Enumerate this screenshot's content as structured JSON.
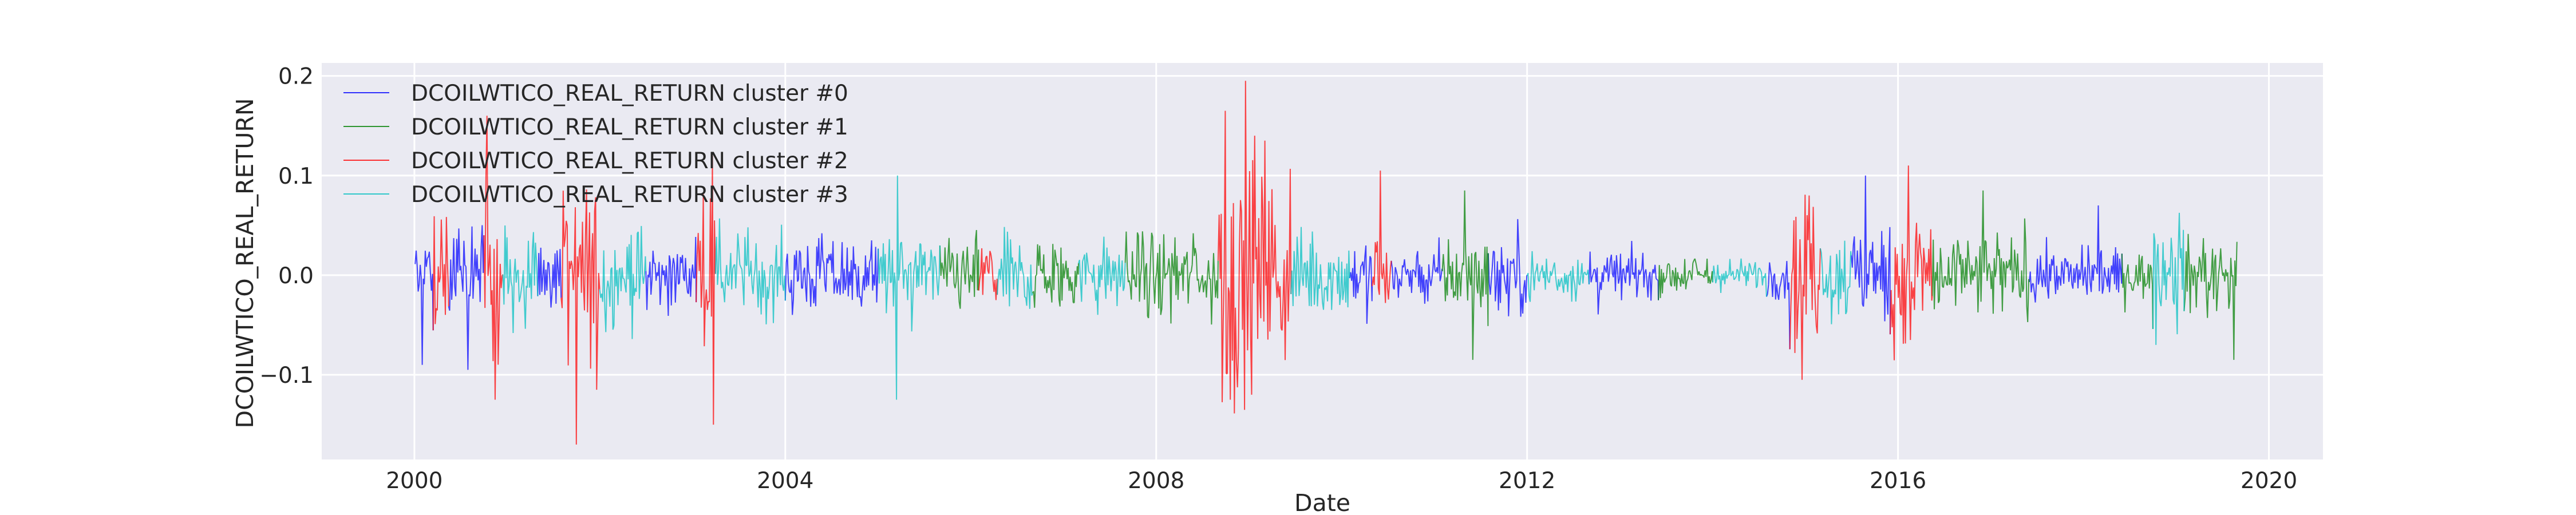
{
  "chart_data": {
    "type": "line",
    "title": "",
    "xlabel": "Date",
    "ylabel": "DCOILWTICO_REAL_RETURN",
    "x_range": [
      "1999-01-01",
      "2020-08-01"
    ],
    "ylim": [
      -0.185,
      0.213
    ],
    "x_ticks": [
      "2000",
      "2004",
      "2008",
      "2012",
      "2016",
      "2020"
    ],
    "y_ticks": [
      -0.1,
      0.0,
      0.1,
      0.2
    ],
    "y_tick_labels": [
      "−0.1",
      "0.0",
      "0.1",
      "0.2"
    ],
    "grid": true,
    "background": "#eaeaf2",
    "legend_position": "top-left",
    "series": [
      {
        "name": "DCOILWTICO_REAL_RETURN cluster #0",
        "color": "#0000ff"
      },
      {
        "name": "DCOILWTICO_REAL_RETURN cluster #1",
        "color": "#008000"
      },
      {
        "name": "DCOILWTICO_REAL_RETURN cluster #2",
        "color": "#ff0000"
      },
      {
        "name": "DCOILWTICO_REAL_RETURN cluster #3",
        "color": "#00bfbf"
      }
    ],
    "regimes": [
      {
        "start": "2000-01-04",
        "end": "2000-03-15",
        "cluster": 0,
        "vol": 0.03
      },
      {
        "start": "2000-03-15",
        "end": "2000-05-15",
        "cluster": 2,
        "vol": 0.04
      },
      {
        "start": "2000-05-15",
        "end": "2000-10-01",
        "cluster": 0,
        "vol": 0.03
      },
      {
        "start": "2000-10-01",
        "end": "2000-12-15",
        "cluster": 2,
        "vol": 0.04
      },
      {
        "start": "2000-12-15",
        "end": "2001-05-01",
        "cluster": 3,
        "vol": 0.025
      },
      {
        "start": "2001-05-01",
        "end": "2001-08-01",
        "cluster": 0,
        "vol": 0.025
      },
      {
        "start": "2001-08-01",
        "end": "2001-12-31",
        "cluster": 2,
        "vol": 0.045
      },
      {
        "start": "2001-12-31",
        "end": "2002-07-01",
        "cluster": 3,
        "vol": 0.025
      },
      {
        "start": "2002-07-01",
        "end": "2003-01-15",
        "cluster": 0,
        "vol": 0.018
      },
      {
        "start": "2003-01-15",
        "end": "2003-04-01",
        "cluster": 2,
        "vol": 0.045
      },
      {
        "start": "2003-04-01",
        "end": "2004-01-01",
        "cluster": 3,
        "vol": 0.02
      },
      {
        "start": "2004-01-01",
        "end": "2005-01-01",
        "cluster": 0,
        "vol": 0.02
      },
      {
        "start": "2005-01-01",
        "end": "2005-09-01",
        "cluster": 3,
        "vol": 0.02
      },
      {
        "start": "2005-09-01",
        "end": "2006-02-01",
        "cluster": 1,
        "vol": 0.018
      },
      {
        "start": "2006-02-01",
        "end": "2006-04-15",
        "cluster": 2,
        "vol": 0.02
      },
      {
        "start": "2006-04-15",
        "end": "2006-09-01",
        "cluster": 3,
        "vol": 0.02
      },
      {
        "start": "2006-09-01",
        "end": "2007-03-01",
        "cluster": 1,
        "vol": 0.02
      },
      {
        "start": "2007-03-01",
        "end": "2007-09-01",
        "cluster": 3,
        "vol": 0.018
      },
      {
        "start": "2007-09-01",
        "end": "2008-09-01",
        "cluster": 1,
        "vol": 0.022
      },
      {
        "start": "2008-09-01",
        "end": "2009-06-15",
        "cluster": 2,
        "vol": 0.055
      },
      {
        "start": "2009-06-15",
        "end": "2010-02-01",
        "cluster": 3,
        "vol": 0.022
      },
      {
        "start": "2010-02-01",
        "end": "2010-05-01",
        "cluster": 0,
        "vol": 0.02
      },
      {
        "start": "2010-05-01",
        "end": "2010-07-15",
        "cluster": 2,
        "vol": 0.025
      },
      {
        "start": "2010-07-15",
        "end": "2011-02-01",
        "cluster": 0,
        "vol": 0.015
      },
      {
        "start": "2011-02-01",
        "end": "2011-08-01",
        "cluster": 1,
        "vol": 0.02
      },
      {
        "start": "2011-08-01",
        "end": "2012-01-01",
        "cluster": 0,
        "vol": 0.022
      },
      {
        "start": "2012-01-01",
        "end": "2012-09-01",
        "cluster": 3,
        "vol": 0.013
      },
      {
        "start": "2012-09-01",
        "end": "2013-06-01",
        "cluster": 0,
        "vol": 0.012
      },
      {
        "start": "2013-06-01",
        "end": "2014-01-01",
        "cluster": 1,
        "vol": 0.01
      },
      {
        "start": "2014-01-01",
        "end": "2014-08-01",
        "cluster": 3,
        "vol": 0.008
      },
      {
        "start": "2014-08-01",
        "end": "2014-11-01",
        "cluster": 0,
        "vol": 0.012
      },
      {
        "start": "2014-11-01",
        "end": "2015-03-01",
        "cluster": 2,
        "vol": 0.035
      },
      {
        "start": "2015-03-01",
        "end": "2015-07-01",
        "cluster": 3,
        "vol": 0.025
      },
      {
        "start": "2015-07-01",
        "end": "2015-12-01",
        "cluster": 0,
        "vol": 0.025
      },
      {
        "start": "2015-12-01",
        "end": "2016-05-15",
        "cluster": 2,
        "vol": 0.04
      },
      {
        "start": "2016-05-15",
        "end": "2017-06-01",
        "cluster": 1,
        "vol": 0.022
      },
      {
        "start": "2017-06-01",
        "end": "2018-06-01",
        "cluster": 0,
        "vol": 0.013
      },
      {
        "start": "2018-06-01",
        "end": "2018-10-01",
        "cluster": 1,
        "vol": 0.012
      },
      {
        "start": "2018-10-01",
        "end": "2019-02-01",
        "cluster": 3,
        "vol": 0.03
      },
      {
        "start": "2019-02-01",
        "end": "2019-08-30",
        "cluster": 1,
        "vol": 0.018
      }
    ],
    "peaks": [
      {
        "date": "2000-02-01",
        "value": -0.09
      },
      {
        "date": "2000-08-01",
        "value": -0.095
      },
      {
        "date": "2000-11-15",
        "value": -0.125
      },
      {
        "date": "2001-10-01",
        "value": -0.17
      },
      {
        "date": "2001-12-20",
        "value": -0.115
      },
      {
        "date": "2003-03-20",
        "value": 0.12
      },
      {
        "date": "2003-03-25",
        "value": -0.15
      },
      {
        "date": "2005-03-15",
        "value": -0.125
      },
      {
        "date": "2005-03-20",
        "value": 0.1
      },
      {
        "date": "2008-10-01",
        "value": 0.165
      },
      {
        "date": "2008-10-20",
        "value": -0.125
      },
      {
        "date": "2008-12-20",
        "value": 0.195
      },
      {
        "date": "2009-01-10",
        "value": -0.12
      },
      {
        "date": "2009-01-25",
        "value": 0.14
      },
      {
        "date": "2009-03-05",
        "value": 0.135
      },
      {
        "date": "2010-06-01",
        "value": 0.105
      },
      {
        "date": "2011-05-01",
        "value": 0.085
      },
      {
        "date": "2011-06-01",
        "value": -0.085
      },
      {
        "date": "2014-12-20",
        "value": -0.105
      },
      {
        "date": "2015-01-15",
        "value": 0.08
      },
      {
        "date": "2015-08-25",
        "value": 0.1
      },
      {
        "date": "2016-02-10",
        "value": 0.11
      },
      {
        "date": "2016-02-20",
        "value": -0.065
      },
      {
        "date": "2016-11-30",
        "value": 0.085
      },
      {
        "date": "2018-03-01",
        "value": 0.07
      },
      {
        "date": "2018-10-15",
        "value": -0.07
      },
      {
        "date": "2019-08-15",
        "value": -0.085
      }
    ]
  }
}
